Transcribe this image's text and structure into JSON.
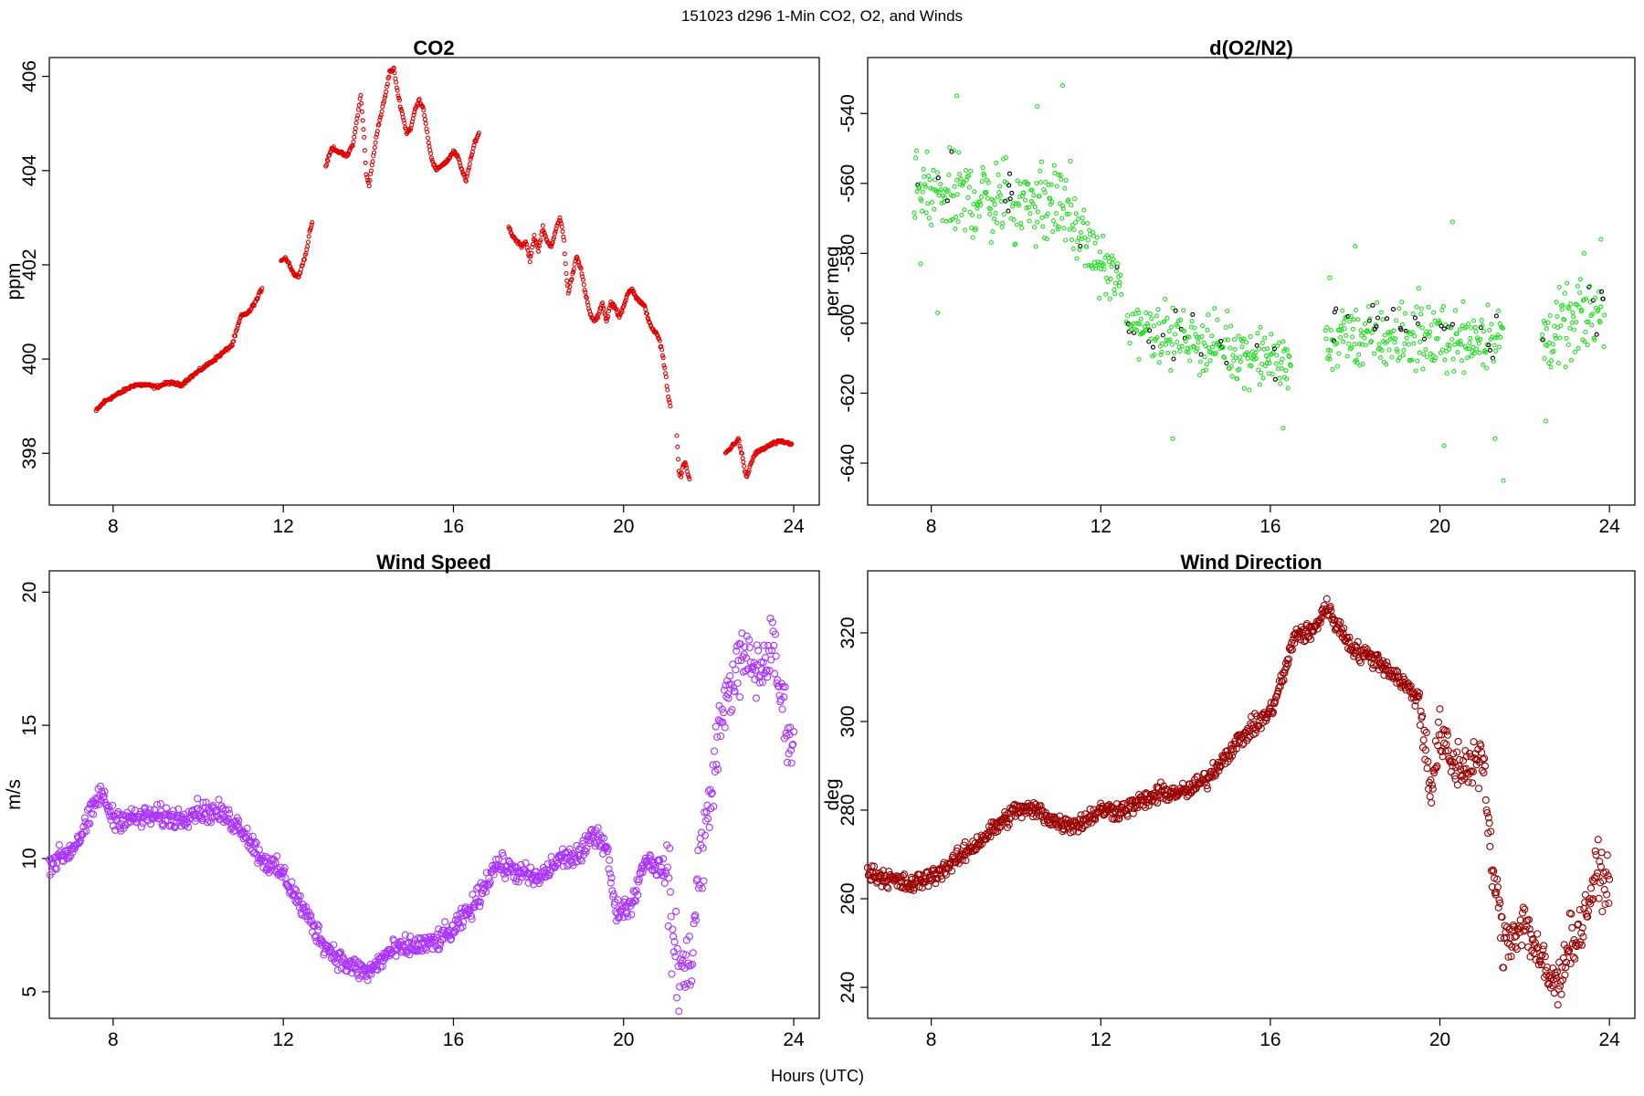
{
  "figure": {
    "title": "151023   d296   1-Min CO2, O2, and Winds",
    "xlabel": "Hours (UTC)"
  },
  "chart_data": [
    {
      "type": "scatter",
      "id": "co2",
      "title": "CO2",
      "ylabel": "ppm",
      "xlabel": "",
      "xlim": [
        6.5,
        24.6
      ],
      "ylim": [
        396.9,
        406.4
      ],
      "xticks": [
        8,
        12,
        16,
        20,
        24
      ],
      "yticks": [
        398,
        400,
        402,
        404,
        406
      ],
      "grid": false,
      "color": "#e00000",
      "marker_radius": 2,
      "segments": [
        {
          "name": "seg1",
          "points": [
            [
              7.6,
              398.9
            ],
            [
              7.8,
              399.1
            ],
            [
              8.0,
              399.2
            ],
            [
              8.3,
              399.35
            ],
            [
              8.5,
              399.45
            ],
            [
              8.8,
              399.45
            ],
            [
              9.0,
              399.4
            ],
            [
              9.3,
              399.5
            ],
            [
              9.6,
              399.45
            ],
            [
              9.8,
              399.6
            ],
            [
              10.1,
              399.8
            ],
            [
              10.4,
              400.0
            ],
            [
              10.6,
              400.15
            ],
            [
              10.8,
              400.3
            ],
            [
              10.9,
              400.6
            ],
            [
              11.0,
              400.9
            ],
            [
              11.2,
              401.0
            ],
            [
              11.4,
              401.3
            ],
            [
              11.5,
              401.5
            ]
          ]
        },
        {
          "name": "seg2",
          "points": [
            [
              11.95,
              402.1
            ],
            [
              12.05,
              402.15
            ],
            [
              12.15,
              402.0
            ],
            [
              12.25,
              401.8
            ],
            [
              12.35,
              401.75
            ],
            [
              12.45,
              402.0
            ],
            [
              12.55,
              402.3
            ],
            [
              12.62,
              402.7
            ],
            [
              12.68,
              402.9
            ]
          ]
        },
        {
          "name": "seg3",
          "points": [
            [
              13.0,
              404.1
            ],
            [
              13.15,
              404.5
            ],
            [
              13.3,
              404.4
            ],
            [
              13.5,
              404.3
            ],
            [
              13.65,
              404.6
            ],
            [
              13.75,
              405.2
            ],
            [
              13.82,
              405.6
            ],
            [
              13.9,
              404.7
            ],
            [
              13.95,
              403.9
            ],
            [
              14.02,
              403.7
            ],
            [
              14.1,
              404.2
            ],
            [
              14.2,
              404.8
            ],
            [
              14.3,
              405.2
            ],
            [
              14.4,
              405.6
            ],
            [
              14.5,
              406.1
            ],
            [
              14.6,
              406.15
            ],
            [
              14.7,
              405.6
            ],
            [
              14.8,
              405.2
            ],
            [
              14.9,
              404.8
            ],
            [
              15.0,
              404.9
            ],
            [
              15.1,
              405.3
            ],
            [
              15.2,
              405.5
            ],
            [
              15.3,
              405.3
            ],
            [
              15.4,
              404.7
            ],
            [
              15.5,
              404.2
            ],
            [
              15.6,
              404.0
            ],
            [
              15.7,
              404.1
            ],
            [
              15.85,
              404.2
            ],
            [
              16.0,
              404.4
            ],
            [
              16.1,
              404.3
            ],
            [
              16.2,
              404.0
            ],
            [
              16.3,
              403.8
            ],
            [
              16.4,
              404.2
            ],
            [
              16.5,
              404.6
            ],
            [
              16.6,
              404.8
            ]
          ]
        },
        {
          "name": "seg4",
          "points": [
            [
              17.3,
              402.8
            ],
            [
              17.4,
              402.6
            ],
            [
              17.5,
              402.5
            ],
            [
              17.6,
              402.4
            ],
            [
              17.7,
              402.5
            ],
            [
              17.8,
              402.1
            ],
            [
              17.9,
              402.6
            ],
            [
              18.0,
              402.3
            ],
            [
              18.1,
              402.8
            ],
            [
              18.2,
              402.5
            ],
            [
              18.3,
              402.4
            ],
            [
              18.4,
              402.7
            ],
            [
              18.5,
              403.0
            ],
            [
              18.55,
              402.8
            ],
            [
              18.6,
              402.5
            ],
            [
              18.65,
              401.8
            ],
            [
              18.7,
              401.4
            ],
            [
              18.8,
              401.8
            ],
            [
              18.9,
              402.2
            ],
            [
              19.0,
              401.9
            ],
            [
              19.1,
              401.4
            ],
            [
              19.2,
              401.0
            ],
            [
              19.3,
              400.8
            ],
            [
              19.4,
              400.9
            ],
            [
              19.5,
              401.2
            ],
            [
              19.6,
              400.8
            ],
            [
              19.7,
              401.2
            ],
            [
              19.8,
              401.1
            ],
            [
              19.9,
              400.9
            ],
            [
              20.0,
              401.1
            ],
            [
              20.1,
              401.4
            ],
            [
              20.2,
              401.5
            ],
            [
              20.3,
              401.3
            ],
            [
              20.4,
              401.2
            ],
            [
              20.5,
              401.1
            ],
            [
              20.6,
              400.8
            ],
            [
              20.7,
              400.6
            ],
            [
              20.8,
              400.5
            ],
            [
              20.9,
              400.2
            ],
            [
              21.0,
              399.6
            ],
            [
              21.05,
              399.2
            ],
            [
              21.1,
              399.0
            ]
          ]
        },
        {
          "name": "seg5",
          "points": [
            [
              21.25,
              398.4
            ],
            [
              21.3,
              397.6
            ],
            [
              21.35,
              397.5
            ],
            [
              21.4,
              397.75
            ],
            [
              21.45,
              397.8
            ],
            [
              21.5,
              397.6
            ],
            [
              21.55,
              397.45
            ]
          ]
        },
        {
          "name": "seg6",
          "points": [
            [
              22.4,
              398.0
            ],
            [
              22.5,
              398.1
            ],
            [
              22.6,
              398.2
            ],
            [
              22.7,
              398.3
            ],
            [
              22.8,
              397.9
            ],
            [
              22.85,
              397.6
            ],
            [
              22.9,
              397.5
            ],
            [
              23.0,
              397.8
            ],
            [
              23.1,
              398.0
            ],
            [
              23.3,
              398.1
            ],
            [
              23.5,
              398.2
            ],
            [
              23.7,
              398.25
            ],
            [
              23.95,
              398.2
            ]
          ]
        }
      ]
    },
    {
      "type": "scatter",
      "id": "o2",
      "title": "d(O2/N2)",
      "ylabel": "per meg",
      "xlabel": "",
      "xlim": [
        6.5,
        24.6
      ],
      "ylim": [
        -652,
        -524
      ],
      "xticks": [
        8,
        12,
        16,
        20,
        24
      ],
      "yticks": [
        -540,
        -560,
        -580,
        -600,
        -620,
        -640
      ],
      "grid": false,
      "color": "#22dd22",
      "accent_color": "#000000",
      "marker_radius": 2,
      "segments": [
        {
          "name": "seg1",
          "x": [
            7.6,
            11.3
          ],
          "center": [
            -563,
            -566
          ],
          "spread": 10,
          "outliers": [
            [
              8.15,
              -597
            ],
            [
              8.6,
              -535
            ],
            [
              11.1,
              -532
            ],
            [
              10.5,
              -538
            ],
            [
              7.75,
              -583
            ]
          ]
        },
        {
          "name": "seg2",
          "x": [
            11.3,
            12.5
          ],
          "center": [
            -572,
            -590
          ],
          "spread": 7,
          "outliers": []
        },
        {
          "name": "seg3",
          "x": [
            12.6,
            16.5
          ],
          "center": [
            -600,
            -612
          ],
          "spread": 7,
          "outliers": [
            [
              13.7,
              -633
            ],
            [
              16.3,
              -630
            ],
            [
              12.9,
              -597
            ]
          ]
        },
        {
          "name": "seg4",
          "x": [
            17.3,
            21.5
          ],
          "center": [
            -604,
            -604
          ],
          "spread": 8,
          "outliers": [
            [
              17.4,
              -587
            ],
            [
              18.0,
              -578
            ],
            [
              20.3,
              -571
            ],
            [
              20.1,
              -635
            ],
            [
              21.3,
              -633
            ],
            [
              21.5,
              -645
            ],
            [
              19.5,
              -590
            ]
          ]
        },
        {
          "name": "seg5",
          "x": [
            22.4,
            23.9
          ],
          "center": [
            -605,
            -595
          ],
          "spread": 9,
          "outliers": [
            [
              22.5,
              -628
            ],
            [
              23.4,
              -580
            ],
            [
              23.8,
              -576
            ]
          ]
        }
      ]
    },
    {
      "type": "scatter",
      "id": "ws",
      "title": "Wind Speed",
      "ylabel": "m/s",
      "xlabel": "",
      "xlim": [
        6.5,
        24.6
      ],
      "ylim": [
        4.0,
        20.8
      ],
      "xticks": [
        8,
        12,
        16,
        20,
        24
      ],
      "yticks": [
        5,
        10,
        15,
        20
      ],
      "grid": false,
      "color": "#aa33ff",
      "marker_radius": 3.5,
      "curve": [
        [
          6.5,
          9.8
        ],
        [
          7.0,
          10.3
        ],
        [
          7.3,
          11.0
        ],
        [
          7.7,
          12.5
        ],
        [
          8.0,
          11.5
        ],
        [
          8.5,
          11.5
        ],
        [
          9.0,
          11.6
        ],
        [
          9.5,
          11.5
        ],
        [
          10.0,
          11.8
        ],
        [
          10.5,
          11.7
        ],
        [
          11.0,
          11.2
        ],
        [
          11.5,
          10.0
        ],
        [
          12.0,
          9.4
        ],
        [
          12.5,
          8.0
        ],
        [
          13.0,
          6.7
        ],
        [
          13.5,
          6.0
        ],
        [
          14.0,
          5.7
        ],
        [
          14.5,
          6.5
        ],
        [
          15.0,
          6.7
        ],
        [
          15.5,
          6.8
        ],
        [
          16.0,
          7.3
        ],
        [
          16.5,
          8.3
        ],
        [
          17.0,
          9.8
        ],
        [
          17.5,
          9.5
        ],
        [
          18.0,
          9.2
        ],
        [
          18.5,
          10.0
        ],
        [
          19.0,
          10.1
        ],
        [
          19.3,
          11.0
        ],
        [
          19.6,
          10.5
        ],
        [
          19.8,
          8.0
        ],
        [
          20.2,
          8.3
        ],
        [
          20.5,
          10.0
        ],
        [
          21.0,
          9.5
        ],
        [
          21.2,
          6.5
        ],
        [
          21.4,
          5.5
        ],
        [
          21.6,
          6.5
        ],
        [
          21.8,
          10.0
        ],
        [
          22.0,
          11.5
        ],
        [
          22.2,
          14.5
        ],
        [
          22.5,
          16.5
        ],
        [
          22.8,
          17.5
        ],
        [
          23.2,
          17.0
        ],
        [
          23.5,
          18.0
        ],
        [
          23.7,
          16.0
        ],
        [
          24.0,
          14.0
        ]
      ],
      "noise": [
        0.35,
        0.35,
        1.5,
        1.0
      ],
      "noise_breaks": [
        19.6,
        21.0,
        22.0
      ]
    },
    {
      "type": "scatter",
      "id": "wd",
      "title": "Wind Direction",
      "ylabel": "deg",
      "xlabel": "",
      "xlim": [
        6.5,
        24.6
      ],
      "ylim": [
        233,
        334
      ],
      "xticks": [
        8,
        12,
        16,
        20,
        24
      ],
      "yticks": [
        240,
        260,
        280,
        300,
        320
      ],
      "grid": false,
      "color": "#990000",
      "marker_radius": 3.5,
      "curve": [
        [
          6.5,
          266
        ],
        [
          7.5,
          263
        ],
        [
          8.0,
          265
        ],
        [
          8.5,
          268
        ],
        [
          9.0,
          272
        ],
        [
          9.5,
          276
        ],
        [
          10.0,
          280
        ],
        [
          10.5,
          280
        ],
        [
          11.0,
          277
        ],
        [
          11.5,
          277
        ],
        [
          12.0,
          280
        ],
        [
          12.5,
          280
        ],
        [
          13.0,
          282
        ],
        [
          13.5,
          284
        ],
        [
          14.0,
          284
        ],
        [
          14.5,
          287
        ],
        [
          15.0,
          293
        ],
        [
          15.5,
          298
        ],
        [
          16.0,
          302
        ],
        [
          16.3,
          310
        ],
        [
          16.6,
          320
        ],
        [
          17.0,
          320
        ],
        [
          17.3,
          326
        ],
        [
          17.7,
          320
        ],
        [
          18.0,
          316
        ],
        [
          18.5,
          314
        ],
        [
          19.0,
          310
        ],
        [
          19.5,
          305
        ],
        [
          19.8,
          285
        ],
        [
          20.0,
          297
        ],
        [
          20.3,
          290
        ],
        [
          20.6,
          290
        ],
        [
          21.0,
          292
        ],
        [
          21.2,
          270
        ],
        [
          21.5,
          250
        ],
        [
          22.0,
          255
        ],
        [
          22.5,
          243
        ],
        [
          22.8,
          240
        ],
        [
          23.0,
          250
        ],
        [
          23.3,
          252
        ],
        [
          23.7,
          266
        ],
        [
          24.0,
          263
        ]
      ],
      "noise": [
        1.8,
        5.0,
        5.0
      ],
      "noise_breaks": [
        19.5,
        21.1
      ]
    }
  ]
}
